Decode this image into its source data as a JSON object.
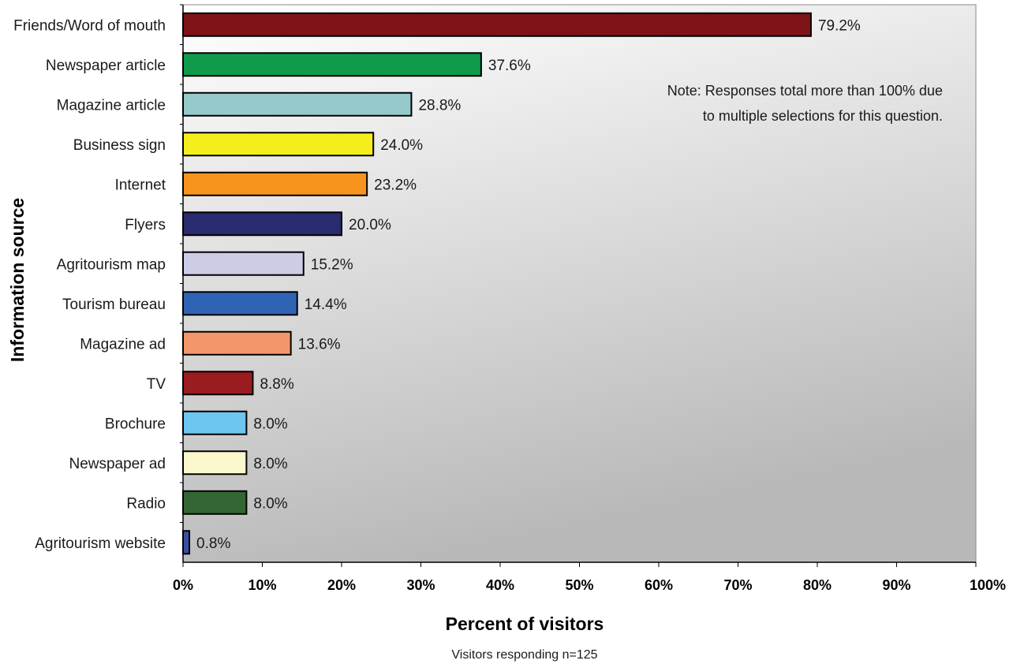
{
  "chart_data": {
    "type": "bar",
    "orientation": "horizontal",
    "categories": [
      "Friends/Word of mouth",
      "Newspaper article",
      "Magazine article",
      "Business sign",
      "Internet",
      "Flyers",
      "Agritourism map",
      "Tourism bureau",
      "Magazine ad",
      "TV",
      "Brochure",
      "Newspaper ad",
      "Radio",
      "Agritourism website"
    ],
    "values": [
      79.2,
      37.6,
      28.8,
      24.0,
      23.2,
      20.0,
      15.2,
      14.4,
      13.6,
      8.8,
      8.0,
      8.0,
      8.0,
      0.8
    ],
    "value_labels": [
      "79.2%",
      "37.6%",
      "28.8%",
      "24.0%",
      "23.2%",
      "20.0%",
      "15.2%",
      "14.4%",
      "13.6%",
      "8.8%",
      "8.0%",
      "8.0%",
      "8.0%",
      "0.8%"
    ],
    "colors": [
      "#7e1418",
      "#0f9a4c",
      "#96c9c9",
      "#f5ee1d",
      "#f7941d",
      "#2a2a6e",
      "#cccce6",
      "#2f63b3",
      "#f4966b",
      "#9a1c20",
      "#6dc6ef",
      "#fbf8ce",
      "#336633",
      "#3a4fa3"
    ],
    "xlabel": "Percent of visitors",
    "ylabel": "Information source",
    "xlim": [
      0,
      100
    ],
    "xticks": [
      "0%",
      "10%",
      "20%",
      "30%",
      "40%",
      "50%",
      "60%",
      "70%",
      "80%",
      "90%",
      "100%"
    ],
    "subtitle": "Visitors responding n=125",
    "note": [
      "Note: Responses total more than 100% due",
      "to multiple selections for this question."
    ],
    "grid": false
  }
}
